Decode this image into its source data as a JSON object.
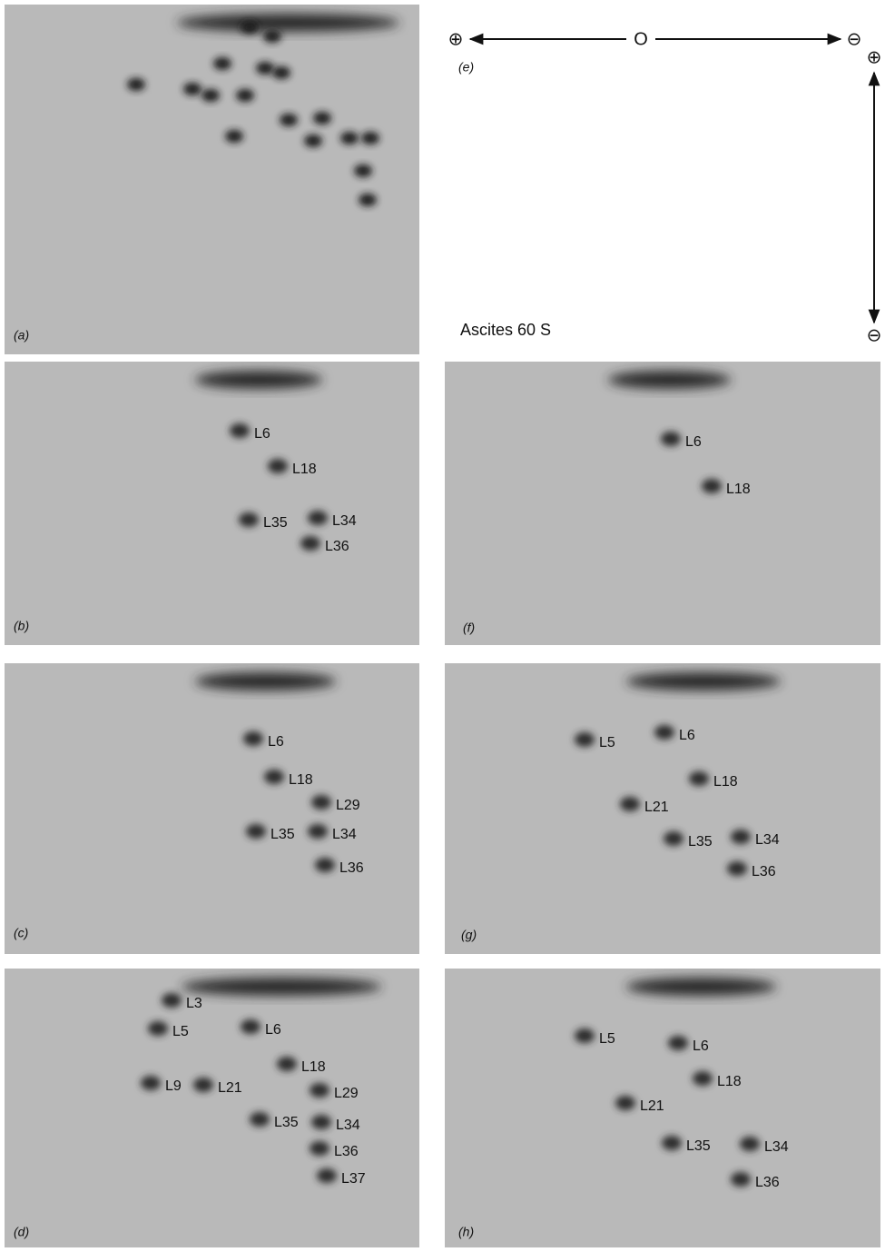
{
  "panel_e": {
    "letter": "(e)",
    "title": "Ascites 60 S",
    "plus_h": "⊕",
    "origin": "O",
    "minus_h": "⊖",
    "plus_v": "⊕",
    "minus_v": "⊖"
  },
  "panels": [
    {
      "letter": "(a)",
      "spots": []
    },
    {
      "letter": "(b)",
      "spots": [
        "L6",
        "L18",
        "L35",
        "L34",
        "L36"
      ]
    },
    {
      "letter": "(f)",
      "spots": [
        "L6",
        "L18"
      ]
    },
    {
      "letter": "(c)",
      "spots": [
        "L6",
        "L18",
        "L29",
        "L35",
        "L34",
        "L36"
      ]
    },
    {
      "letter": "(g)",
      "spots": [
        "L5",
        "L6",
        "L18",
        "L21",
        "L35",
        "L34",
        "L36"
      ]
    },
    {
      "letter": "(d)",
      "spots": [
        "L3",
        "L5",
        "L6",
        "L9",
        "L18",
        "L21",
        "L29",
        "L35",
        "L34",
        "L36",
        "L37"
      ]
    },
    {
      "letter": "(h)",
      "spots": [
        "L5",
        "L6",
        "L18",
        "L21",
        "L35",
        "L34",
        "L36"
      ]
    }
  ]
}
